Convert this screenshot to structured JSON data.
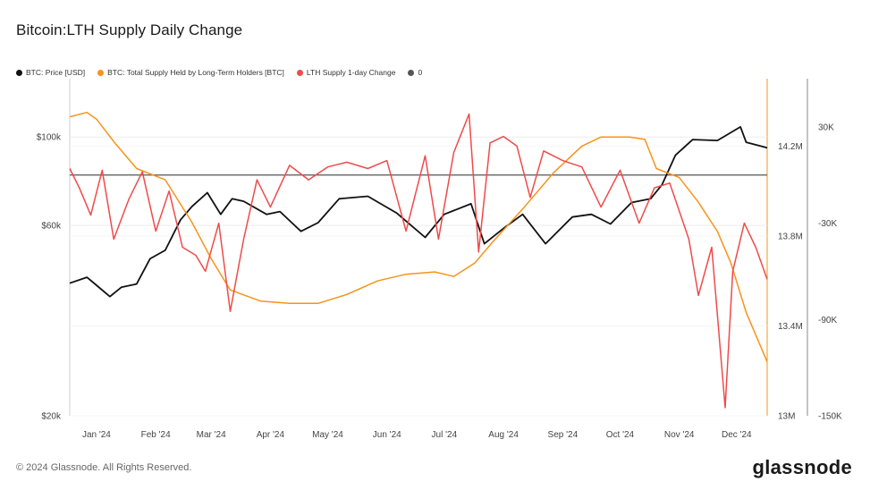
{
  "title": "Bitcoin:LTH Supply Daily Change",
  "footer": "© 2024 Glassnode. All Rights Reserved.",
  "brand": "glassnode",
  "legend": [
    {
      "label": "BTC: Price [USD]",
      "color": "#111111"
    },
    {
      "label": "BTC: Total Supply Held by Long-Term Holders [BTC]",
      "color": "#f7931a"
    },
    {
      "label": "LTH Supply 1-day Change",
      "color": "#f04a4a"
    },
    {
      "label": "0",
      "color": "#555555"
    }
  ],
  "chart_data": {
    "type": "line",
    "x_ticks": [
      "Jan '24",
      "Feb '24",
      "Mar '24",
      "Apr '24",
      "May '24",
      "Jun '24",
      "Jul '24",
      "Aug '24",
      "Sep '24",
      "Oct '24",
      "Nov '24",
      "Dec '24"
    ],
    "x_range": [
      "2024-01-01",
      "2024-12-31"
    ],
    "price_axis": {
      "scale": "log",
      "ticks": [
        "$20k",
        "$60k",
        "$100k"
      ],
      "tick_values": [
        20000,
        60000,
        100000
      ],
      "range": [
        20000,
        140000
      ]
    },
    "supply_axis": {
      "ticks": [
        "13M",
        "13.4M",
        "13.8M",
        "14.2M"
      ],
      "tick_values": [
        13000000,
        13400000,
        13800000,
        14200000
      ],
      "range": [
        13000000,
        14500000
      ]
    },
    "change_axis": {
      "ticks": [
        "-150K",
        "-90K",
        "-30K",
        "30K"
      ],
      "tick_values": [
        -150000,
        -90000,
        -30000,
        30000
      ],
      "range": [
        -150000,
        60000
      ]
    },
    "series": [
      {
        "name": "BTC: Price [USD]",
        "color": "#111111",
        "axis": "price",
        "points": [
          [
            "2024-01-01",
            43000
          ],
          [
            "2024-01-10",
            44500
          ],
          [
            "2024-01-15",
            42500
          ],
          [
            "2024-01-22",
            39800
          ],
          [
            "2024-01-28",
            42000
          ],
          [
            "2024-02-05",
            42800
          ],
          [
            "2024-02-12",
            49500
          ],
          [
            "2024-02-20",
            52000
          ],
          [
            "2024-02-28",
            62000
          ],
          [
            "2024-03-05",
            67000
          ],
          [
            "2024-03-13",
            72500
          ],
          [
            "2024-03-20",
            64000
          ],
          [
            "2024-03-26",
            70000
          ],
          [
            "2024-04-01",
            69000
          ],
          [
            "2024-04-13",
            64000
          ],
          [
            "2024-04-20",
            65000
          ],
          [
            "2024-05-01",
            58000
          ],
          [
            "2024-05-10",
            61000
          ],
          [
            "2024-05-21",
            70000
          ],
          [
            "2024-06-05",
            71000
          ],
          [
            "2024-06-20",
            64500
          ],
          [
            "2024-07-05",
            56000
          ],
          [
            "2024-07-15",
            64000
          ],
          [
            "2024-07-29",
            68000
          ],
          [
            "2024-08-05",
            54000
          ],
          [
            "2024-08-15",
            59000
          ],
          [
            "2024-08-25",
            64000
          ],
          [
            "2024-09-06",
            54000
          ],
          [
            "2024-09-20",
            63000
          ],
          [
            "2024-09-30",
            64000
          ],
          [
            "2024-10-10",
            60500
          ],
          [
            "2024-10-21",
            68500
          ],
          [
            "2024-10-31",
            70000
          ],
          [
            "2024-11-06",
            76000
          ],
          [
            "2024-11-13",
            90000
          ],
          [
            "2024-11-22",
            98500
          ],
          [
            "2024-12-05",
            98000
          ],
          [
            "2024-12-17",
            106000
          ],
          [
            "2024-12-20",
            97000
          ],
          [
            "2024-12-31",
            94000
          ]
        ]
      },
      {
        "name": "BTC: Total Supply Held by Long-Term Holders [BTC]",
        "color": "#f7931a",
        "axis": "supply",
        "points": [
          [
            "2024-01-01",
            14330000
          ],
          [
            "2024-01-10",
            14350000
          ],
          [
            "2024-01-15",
            14320000
          ],
          [
            "2024-01-25",
            14210000
          ],
          [
            "2024-02-05",
            14100000
          ],
          [
            "2024-02-20",
            14050000
          ],
          [
            "2024-03-05",
            13860000
          ],
          [
            "2024-03-15",
            13700000
          ],
          [
            "2024-03-25",
            13560000
          ],
          [
            "2024-04-10",
            13510000
          ],
          [
            "2024-04-25",
            13500000
          ],
          [
            "2024-05-10",
            13500000
          ],
          [
            "2024-05-25",
            13540000
          ],
          [
            "2024-06-10",
            13600000
          ],
          [
            "2024-06-25",
            13630000
          ],
          [
            "2024-07-10",
            13640000
          ],
          [
            "2024-07-20",
            13620000
          ],
          [
            "2024-07-31",
            13680000
          ],
          [
            "2024-08-10",
            13780000
          ],
          [
            "2024-08-25",
            13920000
          ],
          [
            "2024-09-10",
            14080000
          ],
          [
            "2024-09-25",
            14200000
          ],
          [
            "2024-10-05",
            14240000
          ],
          [
            "2024-10-20",
            14240000
          ],
          [
            "2024-10-28",
            14230000
          ],
          [
            "2024-11-03",
            14100000
          ],
          [
            "2024-11-15",
            14060000
          ],
          [
            "2024-11-25",
            13950000
          ],
          [
            "2024-12-05",
            13820000
          ],
          [
            "2024-12-12",
            13680000
          ],
          [
            "2024-12-20",
            13460000
          ],
          [
            "2024-12-31",
            13240000
          ]
        ]
      },
      {
        "name": "LTH Supply 1-day Change",
        "color": "#f04a4a",
        "axis": "change",
        "points": [
          [
            "2024-01-01",
            4000
          ],
          [
            "2024-01-06",
            -8000
          ],
          [
            "2024-01-12",
            -25000
          ],
          [
            "2024-01-18",
            3000
          ],
          [
            "2024-01-24",
            -40000
          ],
          [
            "2024-02-01",
            -15000
          ],
          [
            "2024-02-08",
            2000
          ],
          [
            "2024-02-15",
            -35000
          ],
          [
            "2024-02-22",
            -10000
          ],
          [
            "2024-02-29",
            -45000
          ],
          [
            "2024-03-07",
            -50000
          ],
          [
            "2024-03-12",
            -60000
          ],
          [
            "2024-03-19",
            -30000
          ],
          [
            "2024-03-25",
            -85000
          ],
          [
            "2024-04-01",
            -40000
          ],
          [
            "2024-04-08",
            -3000
          ],
          [
            "2024-04-15",
            -20000
          ],
          [
            "2024-04-25",
            6000
          ],
          [
            "2024-05-05",
            -3000
          ],
          [
            "2024-05-15",
            5000
          ],
          [
            "2024-05-25",
            8000
          ],
          [
            "2024-06-05",
            4000
          ],
          [
            "2024-06-15",
            9000
          ],
          [
            "2024-06-25",
            -35000
          ],
          [
            "2024-07-05",
            12000
          ],
          [
            "2024-07-12",
            -40000
          ],
          [
            "2024-07-20",
            14000
          ],
          [
            "2024-07-28",
            38000
          ],
          [
            "2024-08-02",
            -48000
          ],
          [
            "2024-08-08",
            20000
          ],
          [
            "2024-08-15",
            24000
          ],
          [
            "2024-08-22",
            18000
          ],
          [
            "2024-08-29",
            -14000
          ],
          [
            "2024-09-05",
            15000
          ],
          [
            "2024-09-15",
            9000
          ],
          [
            "2024-09-25",
            5000
          ],
          [
            "2024-10-05",
            -20000
          ],
          [
            "2024-10-15",
            3000
          ],
          [
            "2024-10-25",
            -30000
          ],
          [
            "2024-11-02",
            -8000
          ],
          [
            "2024-11-10",
            -5000
          ],
          [
            "2024-11-20",
            -40000
          ],
          [
            "2024-11-25",
            -75000
          ],
          [
            "2024-12-02",
            -45000
          ],
          [
            "2024-12-09",
            -145000
          ],
          [
            "2024-12-13",
            -60000
          ],
          [
            "2024-12-19",
            -30000
          ],
          [
            "2024-12-25",
            -45000
          ],
          [
            "2024-12-31",
            -65000
          ]
        ]
      }
    ],
    "grid": true
  }
}
